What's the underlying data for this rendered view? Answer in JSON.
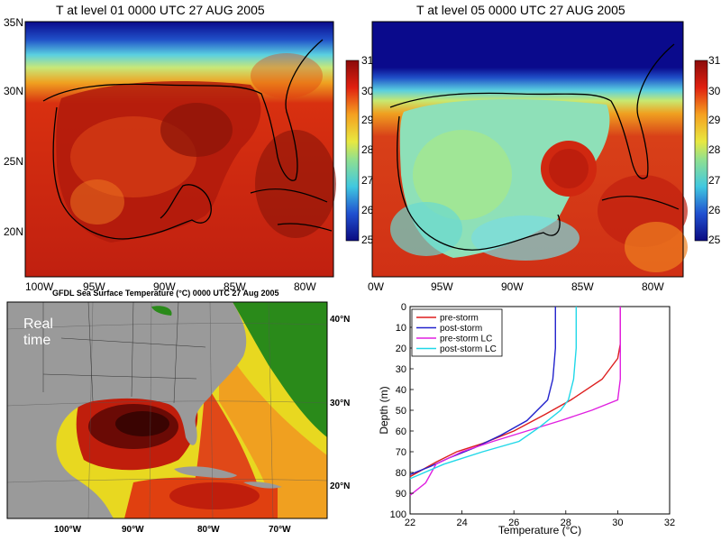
{
  "panels": {
    "top_left": {
      "title": "T at level 01    0000 UTC 27 AUG 2005",
      "lat_ticks": [
        "35N",
        "30N",
        "25N",
        "20N"
      ],
      "lon_ticks": [
        "100W",
        "95W",
        "90W",
        "85W",
        "80W"
      ],
      "colorbar_ticks": [
        "31",
        "30",
        "29",
        "28",
        "27",
        "26",
        "25"
      ]
    },
    "top_right": {
      "title": "T at level 05    0000 UTC 27 AUG 2005",
      "lon_ticks": [
        "0W",
        "95W",
        "90W",
        "85W",
        "80W"
      ],
      "colorbar_ticks": [
        "31",
        "30",
        "29",
        "28",
        "27",
        "26",
        "25"
      ]
    },
    "bottom_left": {
      "title": "GFDL Sea Surface Temperature (°C) 0000 UTC 27 Aug 2005",
      "overlay_label": "Real time",
      "lat_ticks": [
        "40°N",
        "30°N",
        "20°N"
      ],
      "lon_ticks": [
        "100°W",
        "90°W",
        "80°W",
        "70°W"
      ]
    }
  },
  "colors": {
    "warm_dark": "#8b1a0c",
    "warm": "#d62a10",
    "orange": "#f08a1a",
    "yellow_green": "#b7e06a",
    "cyan": "#6ad8d0",
    "blue": "#1a50c8",
    "navy": "#0a0a8c",
    "land_gray": "#9a9a9a",
    "sst_green": "#2a8a1a"
  },
  "chart_data": {
    "type": "line",
    "xlabel": "Temperature (°C)",
    "ylabel": "Depth (m)",
    "xlim": [
      22,
      32
    ],
    "ylim": [
      100,
      0
    ],
    "x_ticks": [
      22,
      24,
      26,
      28,
      30,
      32
    ],
    "y_ticks": [
      0,
      10,
      20,
      30,
      40,
      50,
      60,
      70,
      80,
      90,
      100
    ],
    "grid": false,
    "legend_position": "top-left",
    "series": [
      {
        "name": "pre-storm",
        "color": "#dd1f1f",
        "points": [
          [
            30.1,
            0
          ],
          [
            30.1,
            18
          ],
          [
            30.0,
            25
          ],
          [
            29.4,
            35
          ],
          [
            28.2,
            45
          ],
          [
            27.2,
            52
          ],
          [
            26.0,
            60
          ],
          [
            24.8,
            66
          ],
          [
            23.8,
            70
          ],
          [
            23.0,
            75
          ],
          [
            22.0,
            82
          ]
        ]
      },
      {
        "name": "post-storm",
        "color": "#2222cc",
        "points": [
          [
            27.6,
            0
          ],
          [
            27.6,
            20
          ],
          [
            27.5,
            35
          ],
          [
            27.3,
            45
          ],
          [
            26.5,
            55
          ],
          [
            25.5,
            62
          ],
          [
            24.5,
            68
          ],
          [
            23.5,
            73
          ],
          [
            22.8,
            77
          ],
          [
            22.0,
            81
          ]
        ]
      },
      {
        "name": "pre-storm LC",
        "color": "#e020e0",
        "points": [
          [
            30.1,
            0
          ],
          [
            30.1,
            20
          ],
          [
            30.1,
            35
          ],
          [
            30.0,
            45
          ],
          [
            29.0,
            50
          ],
          [
            27.8,
            55
          ],
          [
            26.5,
            60
          ],
          [
            25.2,
            65
          ],
          [
            24.0,
            70
          ],
          [
            23.0,
            76
          ],
          [
            22.6,
            85
          ],
          [
            22.0,
            91
          ]
        ]
      },
      {
        "name": "post-storm LC",
        "color": "#20d8e8",
        "points": [
          [
            28.4,
            0
          ],
          [
            28.4,
            20
          ],
          [
            28.3,
            35
          ],
          [
            28.1,
            45
          ],
          [
            27.8,
            50
          ],
          [
            27.0,
            58
          ],
          [
            26.2,
            65
          ],
          [
            24.8,
            70
          ],
          [
            23.3,
            76
          ],
          [
            22.0,
            83
          ]
        ]
      }
    ]
  }
}
